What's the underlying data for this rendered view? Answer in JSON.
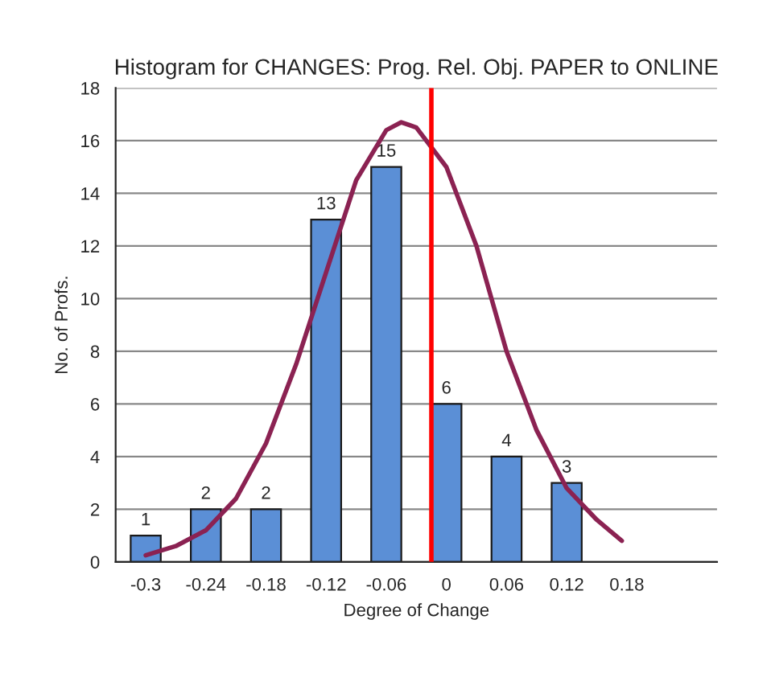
{
  "chart_data": {
    "type": "bar",
    "title": "Histogram for CHANGES: Prog. Rel. Obj. PAPER to ONLINE",
    "xlabel": "Degree of Change",
    "ylabel": "No. of Profs.",
    "x": [
      -0.3,
      -0.24,
      -0.18,
      -0.12,
      -0.06,
      0,
      0.06,
      0.12
    ],
    "series": [
      {
        "color": "#5b8fd6",
        "values": [
          1,
          2,
          2,
          13,
          15,
          6,
          4,
          3
        ],
        "value_labels": [
          "1",
          "2",
          "2",
          "13",
          "15",
          "6",
          "4",
          "3"
        ]
      },
      {
        "type": "line",
        "color": "#8b2252",
        "x": [
          -0.3,
          -0.27,
          -0.24,
          -0.21,
          -0.18,
          -0.15,
          -0.12,
          -0.09,
          -0.06,
          -0.045,
          -0.03,
          0,
          0.03,
          0.06,
          0.09,
          0.12,
          0.15,
          0.175
        ],
        "values": [
          0.25,
          0.6,
          1.2,
          2.4,
          4.5,
          7.5,
          11,
          14.5,
          16.4,
          16.7,
          16.5,
          15,
          12,
          8,
          5,
          2.8,
          1.6,
          0.8
        ]
      }
    ],
    "xlim": [
      -0.33,
      0.27
    ],
    "xticks": [
      -0.3,
      -0.24,
      -0.18,
      -0.12,
      -0.06,
      0,
      0.06,
      0.12,
      0.18
    ],
    "ylim": [
      0,
      18
    ],
    "yticks": [
      0,
      2,
      4,
      6,
      8,
      10,
      12,
      14,
      16,
      18
    ],
    "ref_lines": [
      {
        "axis": "x",
        "value": -0.015,
        "color": "#ff0000"
      }
    ],
    "grid": "y"
  }
}
